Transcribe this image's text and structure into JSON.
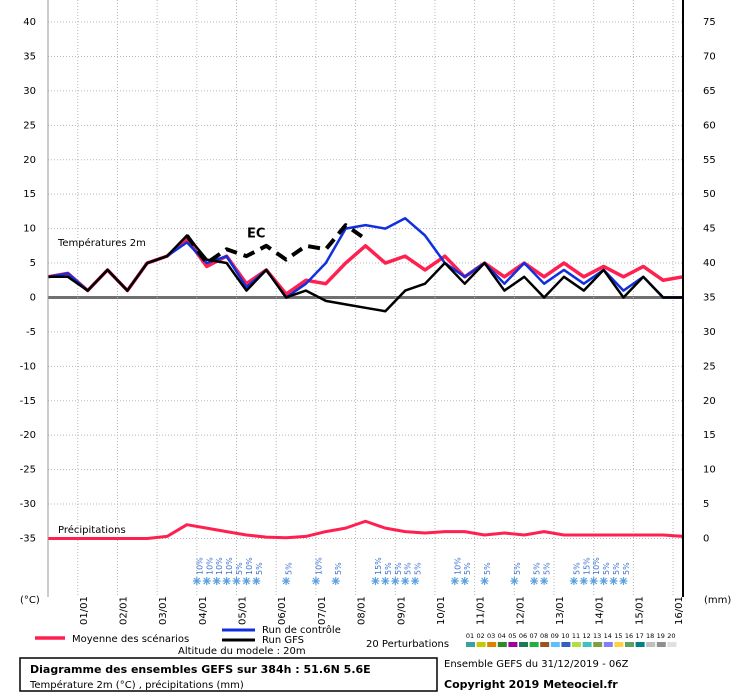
{
  "chart_data": {
    "type": "line",
    "title": "Diagramme des ensembles GEFS sur 384h : 51.6N 5.6E",
    "subtitle": "Température 2m (°C) , précipitations (mm)",
    "run_info": "Ensemble GEFS du 31/12/2019 - 06Z",
    "copyright": "Copyright 2019 Meteociel.fr",
    "altitude": "Altitude du modele : 20m",
    "temperature_label": "Températures 2m",
    "ylabel": "(°C)",
    "y2label": "(mm)",
    "x": [
      0,
      12,
      24,
      36,
      48,
      60,
      72,
      84,
      96,
      108,
      120,
      132,
      144,
      156,
      168,
      180,
      192,
      204,
      216,
      228,
      240,
      252,
      264,
      276,
      288,
      300,
      312,
      324,
      336,
      348,
      360,
      372,
      384
    ],
    "xlim": [
      0,
      384
    ],
    "xticks": [
      {
        "value": 18,
        "label": "01/01"
      },
      {
        "value": 42,
        "label": "02/01"
      },
      {
        "value": 66,
        "label": "03/01"
      },
      {
        "value": 90,
        "label": "04/01"
      },
      {
        "value": 114,
        "label": "05/01"
      },
      {
        "value": 138,
        "label": "06/01"
      },
      {
        "value": 162,
        "label": "07/01"
      },
      {
        "value": 186,
        "label": "08/01"
      },
      {
        "value": 210,
        "label": "09/01"
      },
      {
        "value": 234,
        "label": "10/01"
      },
      {
        "value": 258,
        "label": "11/01"
      },
      {
        "value": 282,
        "label": "12/01"
      },
      {
        "value": 306,
        "label": "13/01"
      },
      {
        "value": 330,
        "label": "14/01"
      },
      {
        "value": 354,
        "label": "15/01"
      },
      {
        "value": 378,
        "label": "16/01"
      }
    ],
    "ylim": [
      -43.5,
      43.2
    ],
    "yticks": [
      -35,
      -30,
      -25,
      -20,
      -15,
      -10,
      -5,
      0,
      5,
      10,
      15,
      20,
      25,
      30,
      35,
      40
    ],
    "y2lim": [
      -8.5,
      78.2
    ],
    "y2ticks": [
      0,
      5,
      10,
      15,
      20,
      25,
      30,
      35,
      40,
      45,
      50,
      55,
      60,
      65,
      70,
      75
    ],
    "grid": true,
    "series": [
      {
        "name": "Moyenne des scénarios",
        "color": "#ff2050",
        "width": 3.5,
        "values": [
          3,
          3.5,
          1,
          4,
          1,
          5,
          6,
          8.5,
          4.5,
          6,
          2,
          4,
          0.5,
          2.5,
          2,
          5,
          7.5,
          5,
          6,
          4,
          6,
          3,
          5,
          3,
          5,
          3,
          5,
          3,
          4.5,
          3,
          4.5,
          2.5,
          3
        ]
      },
      {
        "name": "Run de contrôle",
        "color": "#1030e0",
        "width": 2.5,
        "values": [
          3,
          3.5,
          1,
          4,
          1,
          5,
          6,
          8,
          5,
          6,
          1.5,
          4,
          0,
          2,
          5,
          10,
          10.5,
          10,
          11.5,
          9,
          5,
          3,
          5,
          2,
          5,
          2,
          4,
          2,
          4,
          1,
          3,
          0,
          0
        ]
      },
      {
        "name": "Run GFS",
        "color": "#000000",
        "width": 2.5,
        "values": [
          3,
          3,
          1,
          4,
          1,
          5,
          6,
          9,
          5.5,
          5,
          1,
          4,
          0,
          1,
          -0.5,
          -1,
          -1.5,
          -2,
          1,
          2,
          5,
          2,
          5,
          1,
          3,
          0,
          3,
          1,
          4,
          0,
          3,
          0,
          0
        ]
      },
      {
        "name": "EC",
        "color": "#000000",
        "width": 4,
        "dash": true,
        "values": [
          null,
          null,
          null,
          null,
          null,
          null,
          null,
          9,
          5,
          7,
          6,
          7.5,
          5.5,
          7.5,
          7,
          10.5,
          8.5,
          null,
          null,
          null,
          null,
          null,
          null,
          null,
          null,
          null,
          null,
          null,
          null,
          null,
          null,
          null,
          null
        ]
      },
      {
        "name": "Précipitations",
        "color": "#ff2050",
        "width": 3,
        "axis": "y2",
        "values": [
          0,
          0,
          0,
          0,
          0,
          0,
          0.3,
          2,
          1.5,
          1,
          0.5,
          0.2,
          0.1,
          0.3,
          1,
          1.5,
          2.5,
          1.5,
          1,
          0.8,
          1,
          1,
          0.5,
          0.8,
          0.5,
          1,
          0.5,
          0.5,
          0.5,
          0.5,
          0.5,
          0.5,
          0.3
        ]
      }
    ],
    "snow_probability": {
      "x": [
        90,
        96,
        102,
        108,
        114,
        120,
        126,
        144,
        162,
        174,
        198,
        204,
        210,
        216,
        222,
        246,
        252,
        264,
        282,
        294,
        300,
        318,
        324,
        330,
        336,
        342,
        348
      ],
      "values": [
        10,
        10,
        10,
        10,
        5,
        10,
        5,
        5,
        10,
        5,
        15,
        5,
        5,
        5,
        5,
        10,
        5,
        5,
        5,
        5,
        5,
        5,
        15,
        10,
        5,
        5,
        5
      ],
      "value_labels": [
        "10%",
        "10%",
        "10%",
        "10%",
        "5%",
        "10%",
        "5%",
        "5%",
        "10%",
        "5%",
        "15%",
        "5%",
        "5%",
        "5%",
        "5%",
        "10%",
        "5%",
        "5%",
        "5%",
        "5%",
        "5%",
        "5%",
        "15%",
        "10%",
        "5%",
        "5%",
        "5%"
      ]
    },
    "perturbations": {
      "label": "20 Perturbations",
      "numbers": [
        "01",
        "02",
        "03",
        "04",
        "05",
        "06",
        "07",
        "08",
        "09",
        "10",
        "11",
        "12",
        "13",
        "14",
        "15",
        "16",
        "17",
        "18",
        "19",
        "20"
      ],
      "colors": [
        "#3aa0a0",
        "#c8c800",
        "#e08000",
        "#2a8a2a",
        "#a000a0",
        "#1a7a5a",
        "#20b040",
        "#a05020",
        "#60c0ff",
        "#3060c0",
        "#b0e040",
        "#40c0c0",
        "#80a040",
        "#8080ff",
        "#ffd040",
        "#60a060",
        "#008080",
        "#c0c0c0",
        "#909090",
        "#e0e0e0"
      ]
    }
  }
}
